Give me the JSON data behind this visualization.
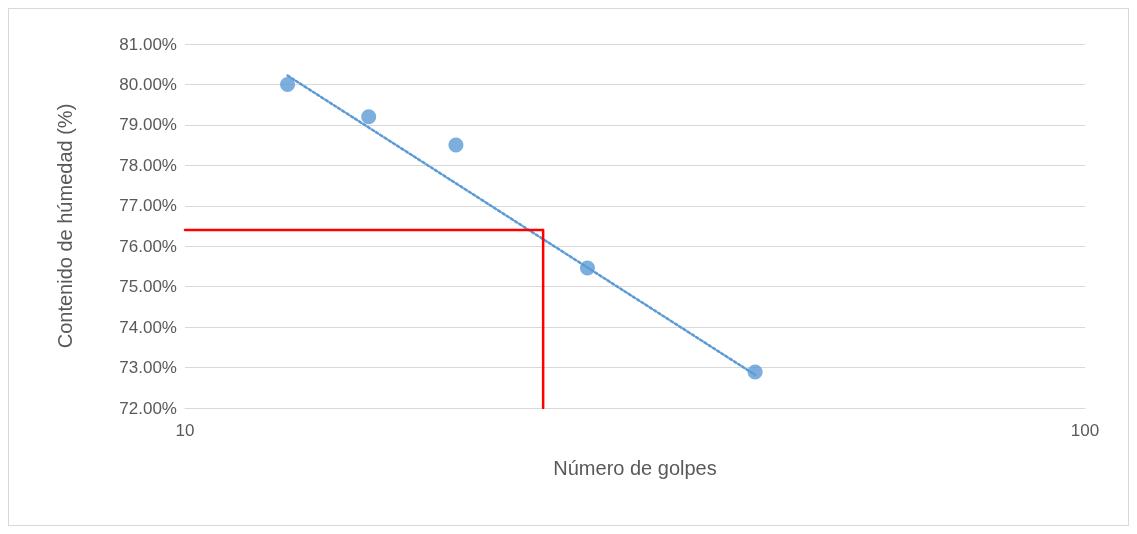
{
  "chart_data": {
    "type": "scatter",
    "xlabel": "Número de golpes",
    "ylabel": "Contenido de húmedad (%)",
    "log": "x",
    "grid": "y",
    "marker": "circle",
    "xlim": [
      10,
      100
    ],
    "xticks": [
      10,
      100
    ],
    "ylim": [
      72,
      81
    ],
    "yticks": [
      {
        "value": 72,
        "label": "72.00%"
      },
      {
        "value": 73,
        "label": "73.00%"
      },
      {
        "value": 74,
        "label": "74.00%"
      },
      {
        "value": 75,
        "label": "75.00%"
      },
      {
        "value": 76,
        "label": "76.00%"
      },
      {
        "value": 77,
        "label": "77.00%"
      },
      {
        "value": 78,
        "label": "78.00%"
      },
      {
        "value": 79,
        "label": "79.00%"
      },
      {
        "value": 80,
        "label": "80.00%"
      },
      {
        "value": 81,
        "label": "81.00%"
      }
    ],
    "series": [
      {
        "color": "#5b9bd5",
        "x": [
          13,
          16,
          20,
          28,
          43
        ],
        "values": [
          80.0,
          79.2,
          78.5,
          75.46,
          72.89
        ]
      },
      {
        "type": "line",
        "color": "#5b9bd5",
        "line_style": "dotted",
        "marker": "none",
        "x": [
          13,
          43
        ],
        "values": [
          80.22,
          72.82
        ]
      },
      {
        "type": "line",
        "color": "#ff0000",
        "line_style": "solid",
        "marker": "none",
        "x": [
          10,
          25,
          25
        ],
        "values": [
          76.4,
          76.4,
          72
        ]
      }
    ]
  }
}
